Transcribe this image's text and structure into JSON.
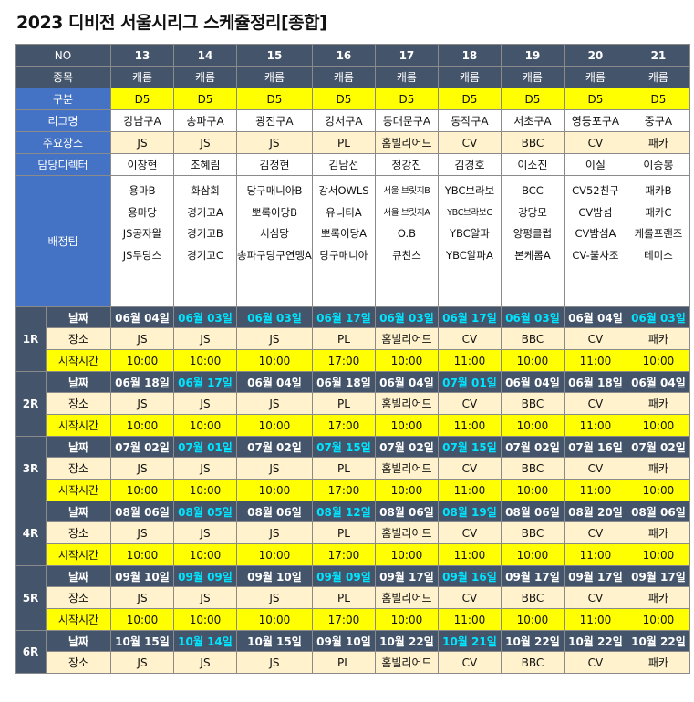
{
  "title": "2023 디비전 서울시리그 스케쥴정리[종합]",
  "header": {
    "no_label": "NO",
    "sport_label": "종목",
    "division_label": "구분",
    "league_label": "리그명",
    "venue_label": "주요장소",
    "director_label": "담당디렉터",
    "teams_label": "배정팀"
  },
  "columns": [
    {
      "no": "13",
      "sport": "캐롬",
      "division": "D5",
      "league": "강남구A",
      "venue": "JS",
      "director": "이창현",
      "teams": [
        "용마B",
        "용마당",
        "JS공자왈",
        "JS두당스"
      ]
    },
    {
      "no": "14",
      "sport": "캐롬",
      "division": "D5",
      "league": "송파구A",
      "venue": "JS",
      "director": "조혜림",
      "teams": [
        "화삼회",
        "경기고A",
        "경기고B",
        "경기고C"
      ]
    },
    {
      "no": "15",
      "sport": "캐롬",
      "division": "D5",
      "league": "광진구A",
      "venue": "JS",
      "director": "김정현",
      "teams": [
        "당구매니아B",
        "뽀록이당B",
        "서심당",
        "송파구당구연맹A"
      ]
    },
    {
      "no": "16",
      "sport": "캐롬",
      "division": "D5",
      "league": "강서구A",
      "venue": "PL",
      "director": "김남선",
      "teams": [
        "강서OWLS",
        "유니티A",
        "뽀록이당A",
        "당구매니아"
      ]
    },
    {
      "no": "17",
      "sport": "캐롬",
      "division": "D5",
      "league": "동대문구A",
      "venue": "홈빌리어드",
      "director": "정강진",
      "teams": [
        "서울 브릿지B",
        "서울 브릿지A",
        "O.B",
        "큐친스"
      ]
    },
    {
      "no": "18",
      "sport": "캐롬",
      "division": "D5",
      "league": "동작구A",
      "venue": "CV",
      "director": "김경호",
      "teams": [
        "YBC브라보",
        "YBC브라보C",
        "YBC알파",
        "YBC알파A"
      ]
    },
    {
      "no": "19",
      "sport": "캐롬",
      "division": "D5",
      "league": "서초구A",
      "venue": "BBC",
      "director": "이소진",
      "teams": [
        "BCC",
        "강당모",
        "양평클럽",
        "본케롬A"
      ]
    },
    {
      "no": "20",
      "sport": "캐롬",
      "division": "D5",
      "league": "영등포구A",
      "venue": "CV",
      "director": "이실",
      "teams": [
        "CV52친구",
        "CV밤섬",
        "CV밤섬A",
        "CV-불사조"
      ]
    },
    {
      "no": "21",
      "sport": "캐롬",
      "division": "D5",
      "league": "중구A",
      "venue": "패카",
      "director": "이승봉",
      "teams": [
        "패카B",
        "패카C",
        "케롤프랜즈",
        "테미스"
      ]
    }
  ],
  "row_labels": {
    "date": "날짜",
    "place": "장소",
    "start": "시작시간"
  },
  "rounds": [
    {
      "name": "1R",
      "dates": [
        "06월 04일",
        "06월 03일",
        "06월 03일",
        "06월 17일",
        "06월 03일",
        "06월 17일",
        "06월 03일",
        "06월 04일",
        "06월 03일"
      ],
      "highlight": [
        false,
        true,
        true,
        true,
        true,
        true,
        true,
        false,
        true
      ],
      "places": [
        "JS",
        "JS",
        "JS",
        "PL",
        "홈빌리어드",
        "CV",
        "BBC",
        "CV",
        "패카"
      ],
      "times": [
        "10:00",
        "10:00",
        "10:00",
        "17:00",
        "10:00",
        "11:00",
        "10:00",
        "11:00",
        "10:00"
      ]
    },
    {
      "name": "2R",
      "dates": [
        "06월 18일",
        "06월 17일",
        "06월 04일",
        "06월 18일",
        "06월 04일",
        "07월 01일",
        "06월 04일",
        "06월 18일",
        "06월 04일"
      ],
      "highlight": [
        false,
        true,
        false,
        false,
        false,
        true,
        false,
        false,
        false
      ],
      "places": [
        "JS",
        "JS",
        "JS",
        "PL",
        "홈빌리어드",
        "CV",
        "BBC",
        "CV",
        "패카"
      ],
      "times": [
        "10:00",
        "10:00",
        "10:00",
        "17:00",
        "10:00",
        "11:00",
        "10:00",
        "11:00",
        "10:00"
      ]
    },
    {
      "name": "3R",
      "dates": [
        "07월 02일",
        "07월 01일",
        "07월 02일",
        "07월 15일",
        "07월 02일",
        "07월 15일",
        "07월 02일",
        "07월 16일",
        "07월 02일"
      ],
      "highlight": [
        false,
        true,
        false,
        true,
        false,
        true,
        false,
        false,
        false
      ],
      "places": [
        "JS",
        "JS",
        "JS",
        "PL",
        "홈빌리어드",
        "CV",
        "BBC",
        "CV",
        "패카"
      ],
      "times": [
        "10:00",
        "10:00",
        "10:00",
        "17:00",
        "10:00",
        "11:00",
        "10:00",
        "11:00",
        "10:00"
      ]
    },
    {
      "name": "4R",
      "dates": [
        "08월 06일",
        "08월 05일",
        "08월 06일",
        "08월 12일",
        "08월 06일",
        "08월 19일",
        "08월 06일",
        "08월 20일",
        "08월 06일"
      ],
      "highlight": [
        false,
        true,
        false,
        true,
        false,
        true,
        false,
        false,
        false
      ],
      "places": [
        "JS",
        "JS",
        "JS",
        "PL",
        "홈빌리어드",
        "CV",
        "BBC",
        "CV",
        "패카"
      ],
      "times": [
        "10:00",
        "10:00",
        "10:00",
        "17:00",
        "10:00",
        "11:00",
        "10:00",
        "11:00",
        "10:00"
      ]
    },
    {
      "name": "5R",
      "dates": [
        "09월 10일",
        "09월 09일",
        "09월 10일",
        "09월 09일",
        "09월 17일",
        "09월 16일",
        "09월 17일",
        "09월 17일",
        "09월 17일"
      ],
      "highlight": [
        false,
        true,
        false,
        true,
        false,
        true,
        false,
        false,
        false
      ],
      "places": [
        "JS",
        "JS",
        "JS",
        "PL",
        "홈빌리어드",
        "CV",
        "BBC",
        "CV",
        "패카"
      ],
      "times": [
        "10:00",
        "10:00",
        "10:00",
        "17:00",
        "10:00",
        "11:00",
        "10:00",
        "11:00",
        "10:00"
      ]
    },
    {
      "name": "6R",
      "dates": [
        "10월 15일",
        "10월 14일",
        "10월 15일",
        "09월 10일",
        "10월 22일",
        "10월 21일",
        "10월 22일",
        "10월 22일",
        "10월 22일"
      ],
      "highlight": [
        false,
        true,
        false,
        false,
        false,
        true,
        false,
        false,
        false
      ],
      "places": [
        "JS",
        "JS",
        "JS",
        "PL",
        "홈빌리어드",
        "CV",
        "BBC",
        "CV",
        "패카"
      ],
      "times": []
    }
  ],
  "colors": {
    "header_dark": "#44546a",
    "label_blue": "#4472c4",
    "division_yellow": "#ffff00",
    "venue_cream": "#fff2cc",
    "date_highlight": "#00e5ff"
  }
}
